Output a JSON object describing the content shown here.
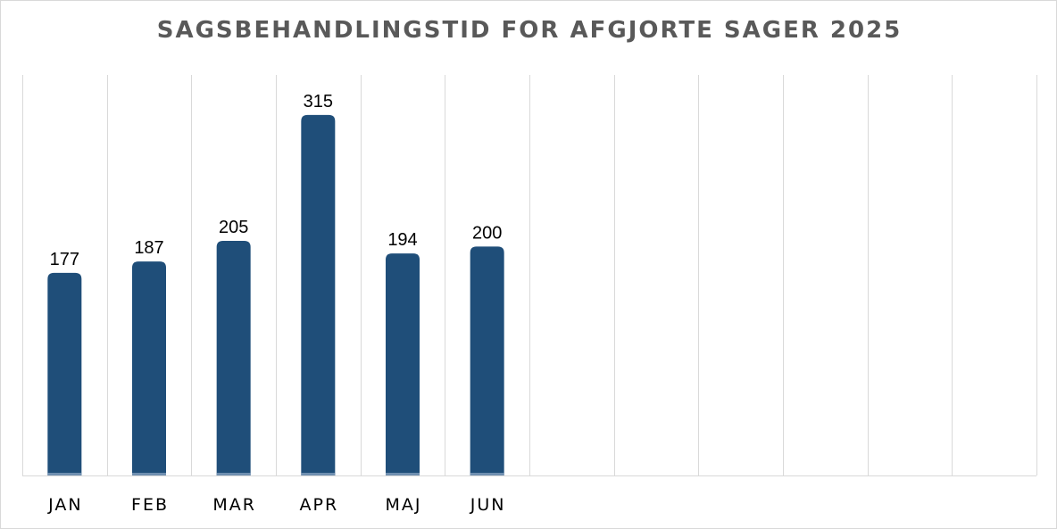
{
  "chart_data": {
    "type": "bar",
    "title": "SAGSBEHANDLINGSTID FOR AFGJORTE SAGER 2025",
    "categories": [
      "JAN",
      "FEB",
      "MAR",
      "APR",
      "MAJ",
      "JUN",
      "",
      "",
      "",
      "",
      "",
      ""
    ],
    "values": [
      177,
      187,
      205,
      315,
      194,
      200,
      null,
      null,
      null,
      null,
      null,
      null
    ],
    "xlabel": "",
    "ylabel": "",
    "ylim": [
      0,
      350
    ],
    "grid": "vertical",
    "legend": "none",
    "data_labels": true,
    "bar_color": "#1f4e79"
  }
}
